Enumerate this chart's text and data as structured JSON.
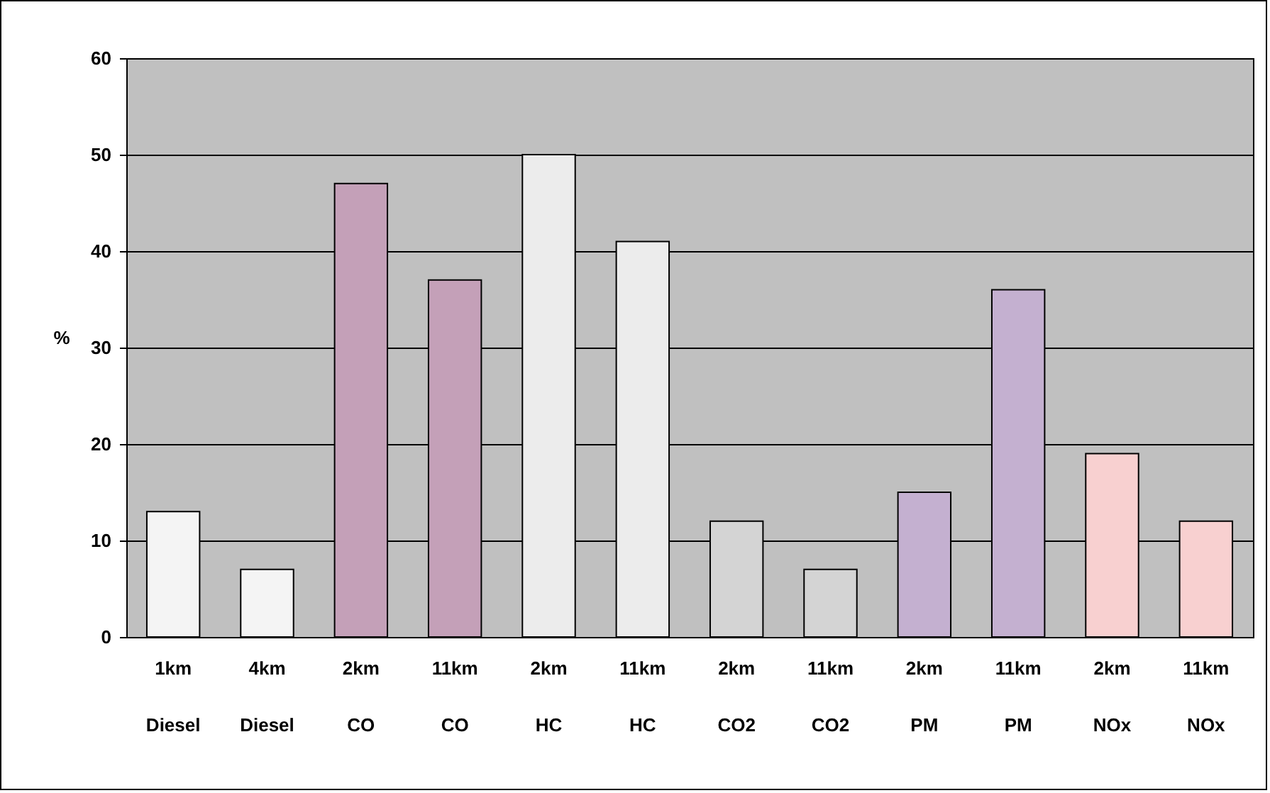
{
  "chart_data": {
    "type": "bar",
    "ylabel": "%",
    "categories": [
      "1km\nDiesel",
      "4km\nDiesel",
      "2km\nCO",
      "11km\nCO",
      "2km\nHC",
      "11km\nHC",
      "2km\nCO2",
      "11km\nCO2",
      "2km\nPM",
      "11km\nPM",
      "2km\nNOx",
      "11km\nNOx"
    ],
    "values": [
      13,
      7,
      47,
      37,
      50,
      41,
      12,
      7,
      15,
      36,
      19,
      12
    ],
    "colors": [
      "#f4f4f4",
      "#f4f4f4",
      "#c4a0b8",
      "#c4a0b8",
      "#ececec",
      "#ececec",
      "#d4d4d4",
      "#d4d4d4",
      "#c4b0d0",
      "#c4b0d0",
      "#f8d0d0",
      "#f8d0d0"
    ],
    "ylim": [
      0,
      60
    ],
    "yticks": [
      0,
      10,
      20,
      30,
      40,
      50,
      60
    ],
    "grid": "y"
  }
}
